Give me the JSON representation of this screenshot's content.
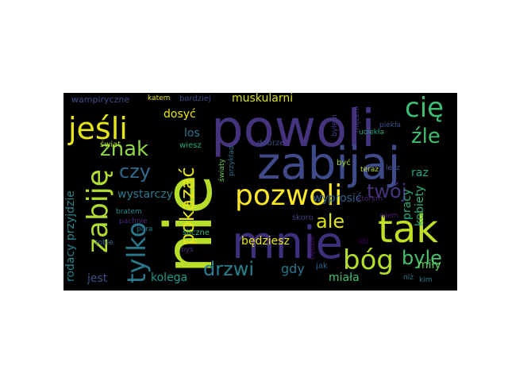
{
  "words": [
    {
      "text": "powoli",
      "color": "#46337e"
    },
    {
      "text": "nie",
      "color": "#b8de29"
    },
    {
      "text": "zabijaj",
      "color": "#3e4a89"
    },
    {
      "text": "mnie",
      "color": "#3e2f7d"
    },
    {
      "text": "zabiję",
      "color": "#b0dd2f"
    },
    {
      "text": "tak",
      "color": "#c2df23"
    },
    {
      "text": "pozwoli",
      "color": "#fde725"
    },
    {
      "text": "jeśli",
      "color": "#e5e419"
    },
    {
      "text": "cię",
      "color": "#3dbc74"
    },
    {
      "text": "bóg",
      "color": "#b5de2b"
    },
    {
      "text": "tylko",
      "color": "#2a788e"
    },
    {
      "text": "drzwi",
      "color": "#277f8e"
    },
    {
      "text": "znak",
      "color": "#8fd744"
    },
    {
      "text": "pokazać",
      "color": "#e5e419"
    },
    {
      "text": "ale",
      "color": "#dde318"
    },
    {
      "text": "twój",
      "color": "#46327e"
    },
    {
      "text": "czy",
      "color": "#31688e"
    },
    {
      "text": "źle",
      "color": "#42be71"
    },
    {
      "text": "byle",
      "color": "#46c06f"
    },
    {
      "text": "muskularni",
      "color": "#d8e219"
    },
    {
      "text": "wystarczy",
      "color": "#29798e"
    },
    {
      "text": "dosyć",
      "color": "#ece51b"
    },
    {
      "text": "los",
      "color": "#2b748e"
    },
    {
      "text": "będziesz",
      "color": "#eae51a"
    },
    {
      "text": "gdy",
      "color": "#2a768e"
    },
    {
      "text": "kolega",
      "color": "#1f9a8a"
    },
    {
      "text": "jest",
      "color": "#3b518b"
    },
    {
      "text": "rodacy przyjdzie",
      "color": "#24868e"
    },
    {
      "text": "miała",
      "color": "#46c06f"
    },
    {
      "text": "wyprosić",
      "color": "#33638d"
    },
    {
      "text": "raz",
      "color": "#20a386"
    },
    {
      "text": "pracy",
      "color": "#25ab82"
    },
    {
      "text": "kobiety",
      "color": "#2fb47c"
    },
    {
      "text": "miły",
      "color": "#65cb5e"
    },
    {
      "text": "wampiryczne",
      "color": "#3e4c8a"
    },
    {
      "text": "katem",
      "color": "#e5e419"
    },
    {
      "text": "bardziej",
      "color": "#3f4889"
    },
    {
      "text": "świat",
      "color": "#b5de2b"
    },
    {
      "text": "wiesz",
      "color": "#22a884"
    },
    {
      "text": "tobie",
      "color": "#33638d"
    },
    {
      "text": "pora",
      "color": "#287d8e"
    },
    {
      "text": "bratem",
      "color": "#238a8d"
    },
    {
      "text": "pachnie",
      "color": "#482677"
    },
    {
      "text": "śliczne",
      "color": "#35b779"
    },
    {
      "text": "byś",
      "color": "#472c7a"
    },
    {
      "text": "światy",
      "color": "#6ccd5a"
    },
    {
      "text": "przykład",
      "color": "#2c728e"
    },
    {
      "text": "dobrze",
      "color": "#3f4788"
    },
    {
      "text": "skoro",
      "color": "#424086"
    },
    {
      "text": "jak",
      "color": "#32648e"
    },
    {
      "text": "będzie",
      "color": "#470d60"
    },
    {
      "text": "idź",
      "color": "#440154"
    },
    {
      "text": "niż",
      "color": "#287c8e"
    },
    {
      "text": "kim",
      "color": "#2a788e"
    },
    {
      "text": "byłem",
      "color": "#443983"
    },
    {
      "text": "mężem",
      "color": "#453781"
    },
    {
      "text": "uciekła",
      "color": "#22a785"
    },
    {
      "text": "teraz",
      "color": "#bddf26"
    },
    {
      "text": "być",
      "color": "#9dd93b"
    },
    {
      "text": "którym",
      "color": "#482475"
    },
    {
      "text": "piekła",
      "color": "#3b518b"
    },
    {
      "text": "lecz",
      "color": "#3b528b"
    },
    {
      "text": "wiem",
      "color": "#481a6c"
    }
  ]
}
